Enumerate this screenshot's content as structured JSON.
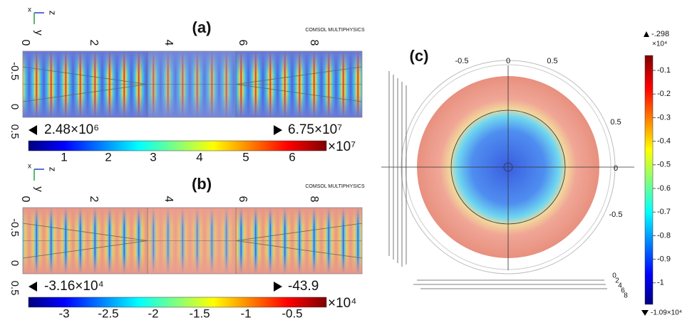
{
  "panels": [
    {
      "label": "(a)",
      "axes": [
        "x",
        "z",
        "y"
      ],
      "top_ticks": [
        "0",
        "2",
        "4",
        "6",
        "8"
      ],
      "left_ticks": [
        "-0.5",
        "0",
        "0.5"
      ],
      "min": "2.48×10⁶",
      "max": "6.75×10⁷",
      "colorbar_ticks": [
        "1",
        "2",
        "3",
        "4",
        "5",
        "6"
      ],
      "colorbar_exponent": "×10⁷"
    },
    {
      "label": "(b)",
      "axes": [
        "x",
        "z",
        "y"
      ],
      "top_ticks": [
        "0",
        "2",
        "4",
        "6",
        "8"
      ],
      "left_ticks": [
        "-0.5",
        "0",
        "0.5"
      ],
      "min": "-3.16×10⁴",
      "max": "-43.9",
      "colorbar_ticks": [
        "-3",
        "-2.5",
        "-2",
        "-1.5",
        "-1",
        "-0.5"
      ],
      "colorbar_exponent": "×10⁴"
    }
  ],
  "watermark": "COMSOL MULTIPHYSICS",
  "panel_c": {
    "label": "(c)",
    "top_ticks": [
      "-0.5",
      "0",
      "0.5"
    ],
    "right_ticks": [
      "0.5",
      "0",
      "-0.5"
    ],
    "bottom_ticks": [
      "0",
      "2",
      "4",
      "6",
      "8"
    ],
    "colorbar_max": "-.298",
    "colorbar_exponent": "×10⁴",
    "colorbar_ticks": [
      "-0.1",
      "-0.2",
      "-0.3",
      "-0.4",
      "-0.5",
      "-0.6",
      "-0.7",
      "-0.8",
      "-0.9",
      "-1"
    ],
    "colorbar_min": "-1.09×10⁴"
  }
}
